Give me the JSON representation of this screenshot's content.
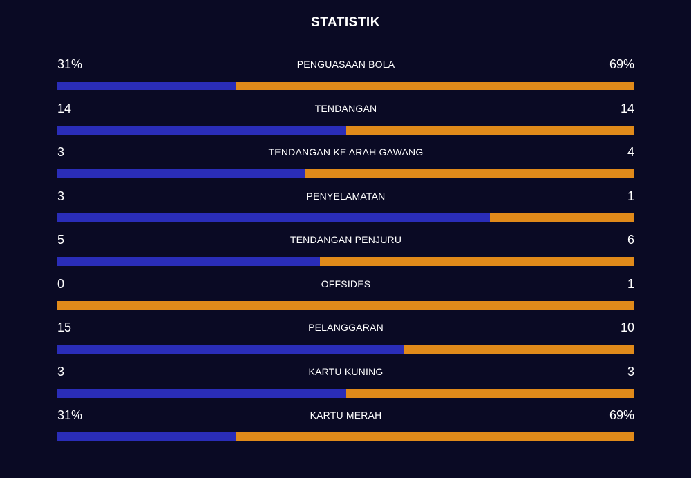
{
  "title": "STATISTIK",
  "colors": {
    "background": "#0a0a24",
    "home": "#2a2db8",
    "away": "#e08a1a"
  },
  "stats": [
    {
      "label": "PENGUASAAN BOLA",
      "home": "31%",
      "away": "69%",
      "home_share": 0.31
    },
    {
      "label": "TENDANGAN",
      "home": "14",
      "away": "14",
      "home_share": 0.5
    },
    {
      "label": "TENDANGAN KE ARAH GAWANG",
      "home": "3",
      "away": "4",
      "home_share": 0.4286
    },
    {
      "label": "PENYELAMATAN",
      "home": "3",
      "away": "1",
      "home_share": 0.75
    },
    {
      "label": "TENDANGAN PENJURU",
      "home": "5",
      "away": "6",
      "home_share": 0.4545
    },
    {
      "label": "OFFSIDES",
      "home": "0",
      "away": "1",
      "home_share": 0
    },
    {
      "label": "PELANGGARAN",
      "home": "15",
      "away": "10",
      "home_share": 0.6
    },
    {
      "label": "KARTU KUNING",
      "home": "3",
      "away": "3",
      "home_share": 0.5
    },
    {
      "label": "KARTU MERAH",
      "home": "31%",
      "away": "69%",
      "home_share": 0.31
    }
  ]
}
